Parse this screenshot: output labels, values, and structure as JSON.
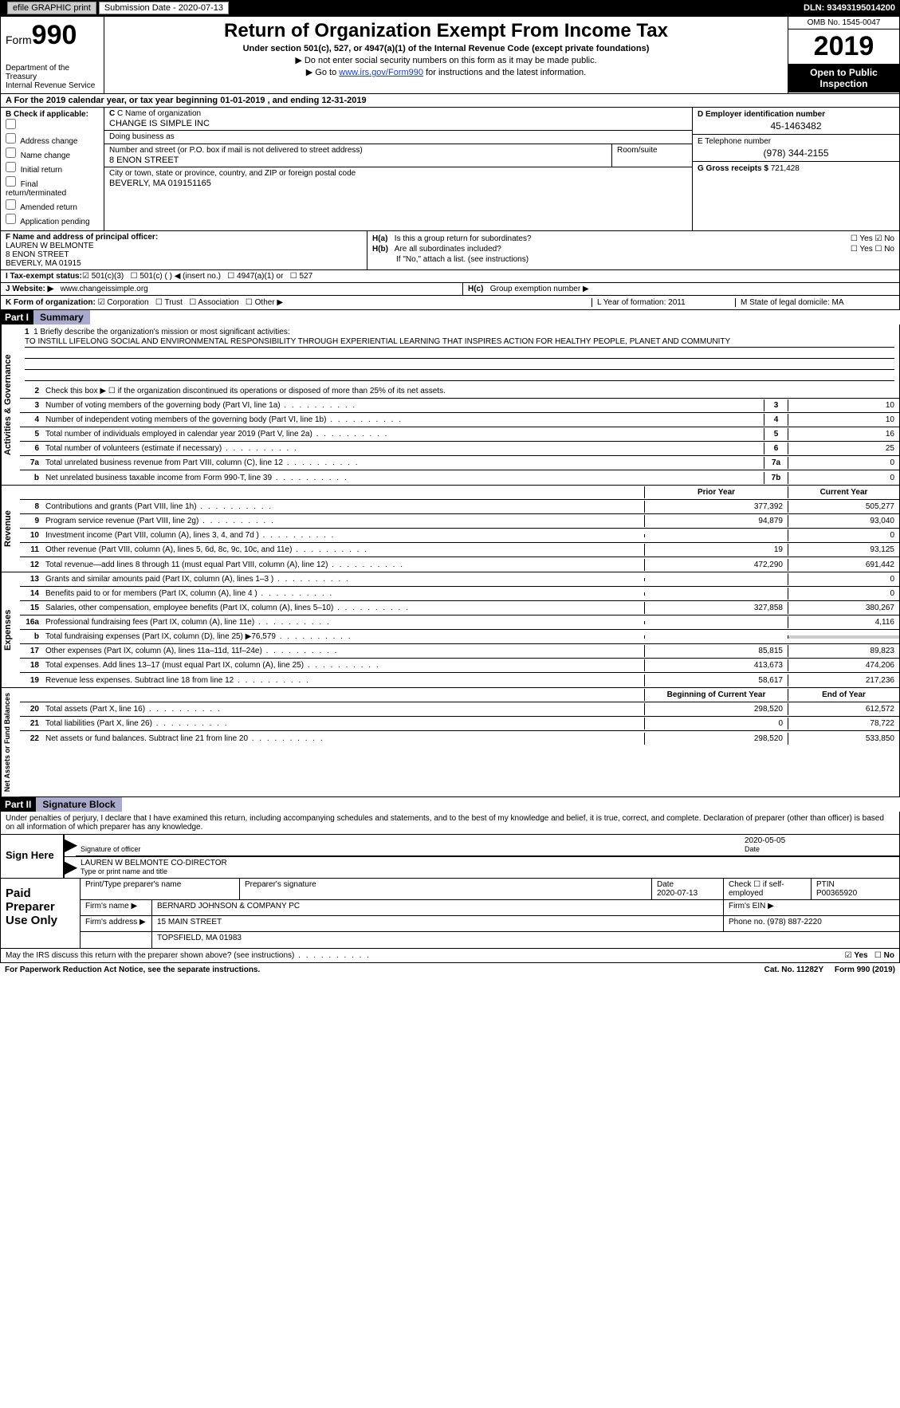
{
  "topbar": {
    "efile": "efile GRAPHIC print",
    "sub_label": "Submission Date - 2020-07-13",
    "dln": "DLN: 93493195014200"
  },
  "header": {
    "form_prefix": "Form",
    "form_num": "990",
    "dept": "Department of the Treasury\nInternal Revenue Service",
    "title": "Return of Organization Exempt From Income Tax",
    "sub1": "Under section 501(c), 527, or 4947(a)(1) of the Internal Revenue Code (except private foundations)",
    "sub2": "▶ Do not enter social security numbers on this form as it may be made public.",
    "sub3_pre": "▶ Go to ",
    "sub3_link": "www.irs.gov/Form990",
    "sub3_post": " for instructions and the latest information.",
    "omb": "OMB No. 1545-0047",
    "year": "2019",
    "inspect": "Open to Public Inspection"
  },
  "row_a": {
    "pre": "A  For the 2019 calendar year, or tax year beginning ",
    "begin": "01-01-2019",
    "mid": "  , and ending ",
    "end": "12-31-2019"
  },
  "col_b": {
    "title": "B Check if applicable:",
    "items": [
      "Address change",
      "Name change",
      "Initial return",
      "Final return/terminated",
      "Amended return",
      "Application pending"
    ]
  },
  "col_c": {
    "name_label": "C Name of organization",
    "name": "CHANGE IS SIMPLE INC",
    "dba_label": "Doing business as",
    "dba": "",
    "street_label": "Number and street (or P.O. box if mail is not delivered to street address)",
    "street": "8 ENON STREET",
    "room_label": "Room/suite",
    "room": "",
    "city_label": "City or town, state or province, country, and ZIP or foreign postal code",
    "city": "BEVERLY, MA  019151165"
  },
  "col_d": {
    "d_label": "D Employer identification number",
    "d_val": "45-1463482",
    "e_label": "E Telephone number",
    "e_val": "(978) 344-2155",
    "g_label": "G Gross receipts $ ",
    "g_val": "721,428"
  },
  "f": {
    "label": "F  Name and address of principal officer:",
    "name": "LAUREN W BELMONTE",
    "street": "8 ENON STREET",
    "city": "BEVERLY, MA  01915"
  },
  "h": {
    "a": "Is this a group return for subordinates?",
    "b": "Are all subordinates included?",
    "b_note": "If \"No,\" attach a list. (see instructions)",
    "c": "Group exemption number ▶"
  },
  "row_i": {
    "label": "I  Tax-exempt status:",
    "opts": [
      "501(c)(3)",
      "501(c) (  ) ◀ (insert no.)",
      "4947(a)(1) or",
      "527"
    ]
  },
  "row_j": {
    "label": "J  Website: ▶",
    "val": "www.changeissimple.org",
    "hc": "H(c)   Group exemption number ▶"
  },
  "row_k": {
    "label": "K Form of organization:",
    "opts": [
      "Corporation",
      "Trust",
      "Association",
      "Other ▶"
    ],
    "l": "L Year of formation: 2011",
    "m": "M State of legal domicile: MA"
  },
  "part1": {
    "hdr": "Part I",
    "title": "Summary"
  },
  "mission": {
    "label": "1  Briefly describe the organization's mission or most significant activities:",
    "text": "TO INSTILL LIFELONG SOCIAL AND ENVIRONMENTAL RESPONSIBILITY THROUGH EXPERIENTIAL LEARNING THAT INSPIRES ACTION FOR HEALTHY PEOPLE, PLANET AND COMMUNITY"
  },
  "lines_gov": [
    {
      "n": "2",
      "d": "Check this box ▶ ☐ if the organization discontinued its operations or disposed of more than 25% of its net assets."
    },
    {
      "n": "3",
      "d": "Number of voting members of the governing body (Part VI, line 1a)",
      "box": "3",
      "v": "10"
    },
    {
      "n": "4",
      "d": "Number of independent voting members of the governing body (Part VI, line 1b)",
      "box": "4",
      "v": "10"
    },
    {
      "n": "5",
      "d": "Total number of individuals employed in calendar year 2019 (Part V, line 2a)",
      "box": "5",
      "v": "16"
    },
    {
      "n": "6",
      "d": "Total number of volunteers (estimate if necessary)",
      "box": "6",
      "v": "25"
    },
    {
      "n": "7a",
      "d": "Total unrelated business revenue from Part VIII, column (C), line 12",
      "box": "7a",
      "v": "0"
    },
    {
      "n": "b",
      "d": "Net unrelated business taxable income from Form 990-T, line 39",
      "box": "7b",
      "v": "0"
    }
  ],
  "col_hdr": {
    "prior": "Prior Year",
    "current": "Current Year"
  },
  "lines_rev": [
    {
      "n": "8",
      "d": "Contributions and grants (Part VIII, line 1h)",
      "p": "377,392",
      "c": "505,277"
    },
    {
      "n": "9",
      "d": "Program service revenue (Part VIII, line 2g)",
      "p": "94,879",
      "c": "93,040"
    },
    {
      "n": "10",
      "d": "Investment income (Part VIII, column (A), lines 3, 4, and 7d )",
      "p": "",
      "c": "0"
    },
    {
      "n": "11",
      "d": "Other revenue (Part VIII, column (A), lines 5, 6d, 8c, 9c, 10c, and 11e)",
      "p": "19",
      "c": "93,125"
    },
    {
      "n": "12",
      "d": "Total revenue—add lines 8 through 11 (must equal Part VIII, column (A), line 12)",
      "p": "472,290",
      "c": "691,442"
    }
  ],
  "lines_exp": [
    {
      "n": "13",
      "d": "Grants and similar amounts paid (Part IX, column (A), lines 1–3 )",
      "p": "",
      "c": "0"
    },
    {
      "n": "14",
      "d": "Benefits paid to or for members (Part IX, column (A), line 4 )",
      "p": "",
      "c": "0"
    },
    {
      "n": "15",
      "d": "Salaries, other compensation, employee benefits (Part IX, column (A), lines 5–10)",
      "p": "327,858",
      "c": "380,267"
    },
    {
      "n": "16a",
      "d": "Professional fundraising fees (Part IX, column (A), line 11e)",
      "p": "",
      "c": "4,116"
    },
    {
      "n": "b",
      "d": "Total fundraising expenses (Part IX, column (D), line 25) ▶76,579",
      "shade": true
    },
    {
      "n": "17",
      "d": "Other expenses (Part IX, column (A), lines 11a–11d, 11f–24e)",
      "p": "85,815",
      "c": "89,823"
    },
    {
      "n": "18",
      "d": "Total expenses. Add lines 13–17 (must equal Part IX, column (A), line 25)",
      "p": "413,673",
      "c": "474,206"
    },
    {
      "n": "19",
      "d": "Revenue less expenses. Subtract line 18 from line 12",
      "p": "58,617",
      "c": "217,236"
    }
  ],
  "col_hdr2": {
    "prior": "Beginning of Current Year",
    "current": "End of Year"
  },
  "lines_net": [
    {
      "n": "20",
      "d": "Total assets (Part X, line 16)",
      "p": "298,520",
      "c": "612,572"
    },
    {
      "n": "21",
      "d": "Total liabilities (Part X, line 26)",
      "p": "0",
      "c": "78,722"
    },
    {
      "n": "22",
      "d": "Net assets or fund balances. Subtract line 21 from line 20",
      "p": "298,520",
      "c": "533,850"
    }
  ],
  "vstrips": {
    "gov": "Activities & Governance",
    "rev": "Revenue",
    "exp": "Expenses",
    "net": "Net Assets or Fund Balances"
  },
  "part2": {
    "hdr": "Part II",
    "title": "Signature Block"
  },
  "sig_intro": "Under penalties of perjury, I declare that I have examined this return, including accompanying schedules and statements, and to the best of my knowledge and belief, it is true, correct, and complete. Declaration of preparer (other than officer) is based on all information of which preparer has any knowledge.",
  "sign": {
    "here": "Sign Here",
    "sig_label": "Signature of officer",
    "date": "2020-05-05",
    "date_label": "Date",
    "name": "LAUREN W BELMONTE  CO-DIRECTOR",
    "name_label": "Type or print name and title"
  },
  "paid": {
    "title": "Paid Preparer Use Only",
    "h1": "Print/Type preparer's name",
    "h2": "Preparer's signature",
    "h3": "Date",
    "date": "2020-07-13",
    "h4": "Check ☐ if self-employed",
    "h5": "PTIN",
    "ptin": "P00365920",
    "firm_label": "Firm's name   ▶",
    "firm": "BERNARD JOHNSON & COMPANY PC",
    "ein_label": "Firm's EIN ▶",
    "addr_label": "Firm's address ▶",
    "addr1": "15 MAIN STREET",
    "addr2": "TOPSFIELD, MA  01983",
    "phone_label": "Phone no. ",
    "phone": "(978) 887-2220"
  },
  "may": {
    "q": "May the IRS discuss this return with the preparer shown above? (see instructions)",
    "yes": "Yes",
    "no": "No"
  },
  "footer": {
    "left": "For Paperwork Reduction Act Notice, see the separate instructions.",
    "mid": "Cat. No. 11282Y",
    "right": "Form 990 (2019)"
  }
}
